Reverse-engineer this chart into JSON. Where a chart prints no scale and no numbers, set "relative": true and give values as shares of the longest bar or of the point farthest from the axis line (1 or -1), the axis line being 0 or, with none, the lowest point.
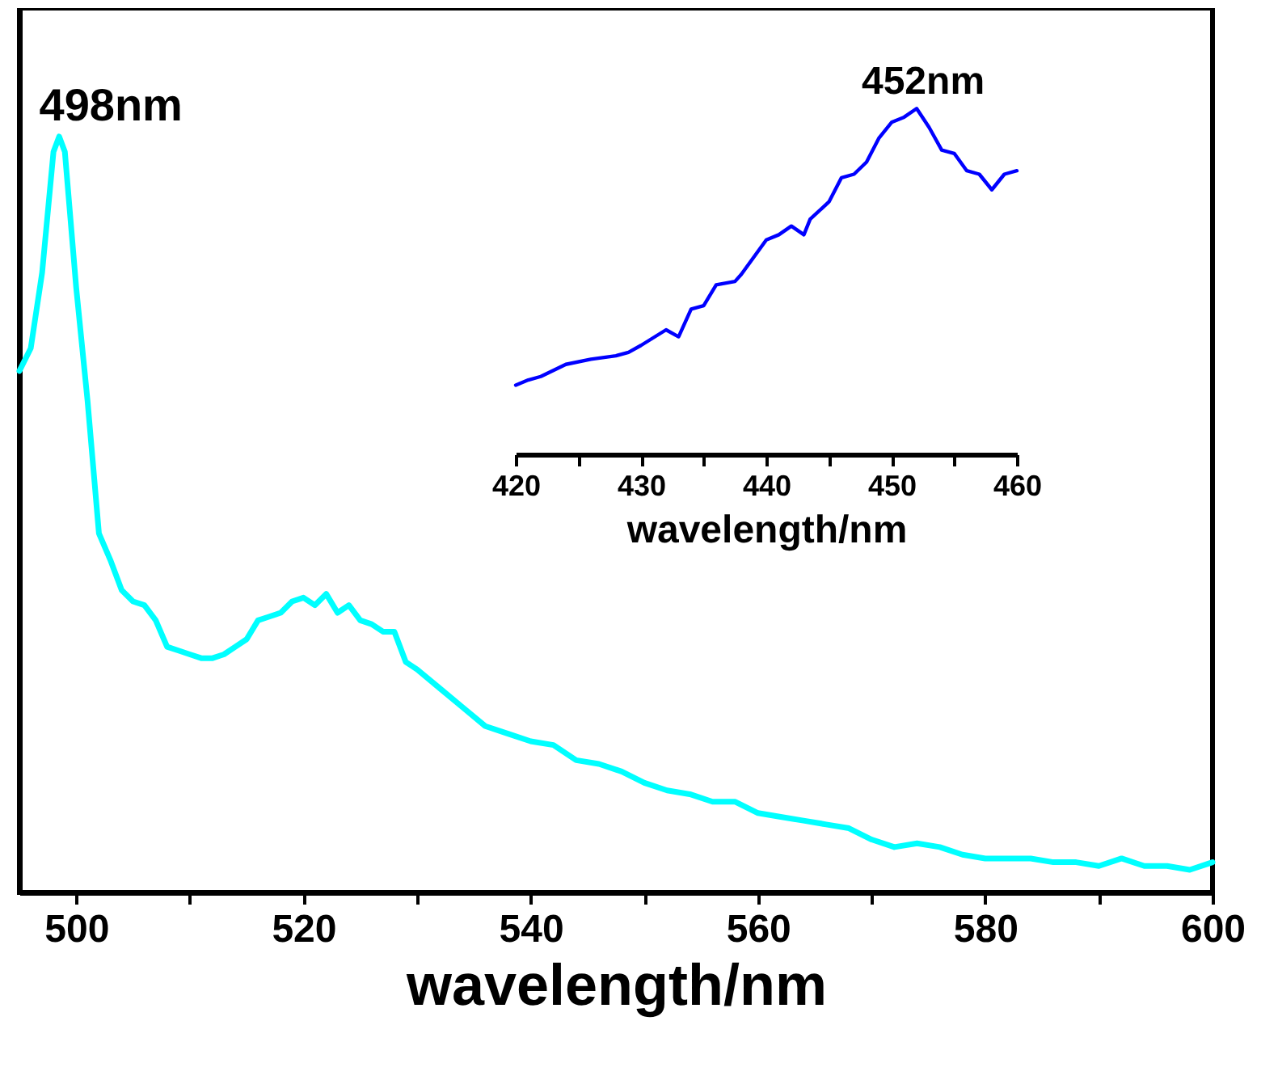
{
  "chart_data": [
    {
      "type": "line",
      "relative": true,
      "xlabel": "wavelength/nm",
      "xlim": [
        495,
        600
      ],
      "xticks": [
        500,
        {
          "value": 510,
          "label": null
        },
        520,
        {
          "value": 530,
          "label": null
        },
        540,
        {
          "value": 550,
          "label": null
        },
        560,
        {
          "value": 570,
          "label": null
        },
        580,
        {
          "value": 590,
          "label": null
        },
        600
      ],
      "annotations": [
        {
          "text": "498nm",
          "x": 498.5,
          "y": 1
        }
      ],
      "x": [
        495,
        496,
        497,
        497.5,
        498,
        498.5,
        499,
        500,
        501,
        502,
        503,
        504,
        505,
        506,
        507,
        508,
        509,
        510,
        511,
        512,
        513,
        514,
        515,
        516,
        517,
        518,
        519,
        520,
        521,
        522,
        523,
        524,
        525,
        526,
        527,
        528,
        529,
        530,
        532,
        534,
        536,
        538,
        540,
        542,
        544,
        546,
        548,
        550,
        552,
        554,
        556,
        558,
        560,
        562,
        564,
        566,
        568,
        570,
        572,
        574,
        576,
        578,
        580,
        582,
        584,
        586,
        588,
        590,
        592,
        594,
        596,
        598,
        600
      ],
      "series": [
        {
          "color": "#00ffff",
          "values": [
            0.69,
            0.72,
            0.82,
            0.9,
            0.98,
            1.0,
            0.98,
            0.8,
            0.65,
            0.475,
            0.44,
            0.4,
            0.385,
            0.38,
            0.36,
            0.325,
            0.32,
            0.315,
            0.31,
            0.31,
            0.315,
            0.325,
            0.335,
            0.36,
            0.365,
            0.37,
            0.385,
            0.39,
            0.38,
            0.395,
            0.37,
            0.38,
            0.36,
            0.355,
            0.345,
            0.345,
            0.305,
            0.295,
            0.27,
            0.245,
            0.22,
            0.21,
            0.2,
            0.195,
            0.175,
            0.17,
            0.16,
            0.145,
            0.135,
            0.13,
            0.12,
            0.12,
            0.105,
            0.1,
            0.095,
            0.09,
            0.085,
            0.07,
            0.06,
            0.065,
            0.06,
            0.05,
            0.045,
            0.045,
            0.045,
            0.04,
            0.04,
            0.035,
            0.045,
            0.035,
            0.035,
            0.03,
            0.04
          ]
        }
      ]
    },
    {
      "type": "line",
      "relative": true,
      "xlabel": "wavelength/nm",
      "xlim": [
        420,
        460
      ],
      "xticks": [
        420,
        {
          "value": 425,
          "label": null
        },
        430,
        {
          "value": 435,
          "label": null
        },
        440,
        {
          "value": 445,
          "label": null
        },
        450,
        {
          "value": 455,
          "label": null
        },
        460
      ],
      "annotations": [
        {
          "text": "452nm",
          "x": 452,
          "y": 1
        }
      ],
      "x": [
        420,
        421,
        422,
        424,
        426,
        428,
        429,
        430,
        432,
        433,
        434,
        435,
        436,
        437.5,
        438,
        440,
        441,
        442,
        443,
        443.5,
        445,
        446,
        447,
        448,
        449,
        450,
        451,
        452,
        453,
        454,
        455,
        456,
        457,
        458,
        459,
        460
      ],
      "series": [
        {
          "color": "#0000ff",
          "values": [
            0.2,
            0.215,
            0.225,
            0.26,
            0.275,
            0.285,
            0.295,
            0.315,
            0.36,
            0.34,
            0.42,
            0.43,
            0.49,
            0.5,
            0.52,
            0.62,
            0.635,
            0.66,
            0.635,
            0.68,
            0.73,
            0.8,
            0.81,
            0.845,
            0.915,
            0.96,
            0.975,
            1.0,
            0.945,
            0.88,
            0.87,
            0.82,
            0.81,
            0.765,
            0.81,
            0.82
          ]
        }
      ]
    }
  ]
}
